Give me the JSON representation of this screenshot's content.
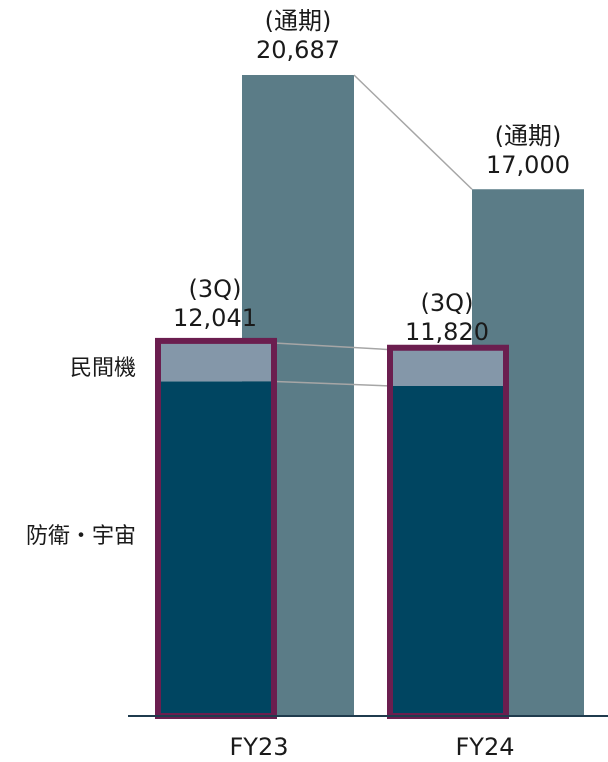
{
  "chart_data": {
    "type": "bar",
    "categories": [
      "FY23",
      "FY24"
    ],
    "series": [
      {
        "key": "q3_defense",
        "segment_label": "防衛・宇宙",
        "values": [
          10800,
          10650
        ],
        "color": "#004561"
      },
      {
        "key": "q3_civil",
        "segment_label": "民間機",
        "values": [
          1241,
          1170
        ],
        "color": "#8497a9"
      },
      {
        "key": "full_year",
        "period_label": "(通期)",
        "values": [
          20687,
          17000
        ],
        "color": "#5b7c87"
      }
    ],
    "q3_period_label": "(3Q)",
    "q3_total_labels": [
      "12,041",
      "11,820"
    ],
    "full_year_labels": [
      "20,687",
      "17,000"
    ],
    "highlight_color": "#6b1e4f",
    "connector_color": "#a6a6a6",
    "axis_color": "#1f3b4d",
    "ylim": [
      0,
      20687
    ]
  }
}
